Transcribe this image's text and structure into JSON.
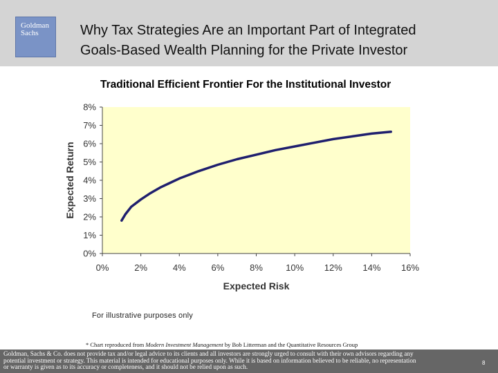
{
  "header": {
    "logo": {
      "line1": "Goldman",
      "line2": "Sachs"
    },
    "title_line1": "Why Tax Strategies Are an Important Part of Integrated",
    "title_line2": "Goals-Based Wealth Planning for the Private Investor"
  },
  "chart_data": {
    "type": "line",
    "title": "Traditional Efficient Frontier For the Institutional Investor",
    "xlabel": "Expected Risk",
    "ylabel": "Expected Return",
    "xlim": [
      0,
      16
    ],
    "ylim": [
      0,
      8
    ],
    "xticks": [
      "0%",
      "2%",
      "4%",
      "6%",
      "8%",
      "10%",
      "12%",
      "14%",
      "16%"
    ],
    "yticks": [
      "0%",
      "1%",
      "2%",
      "3%",
      "4%",
      "5%",
      "6%",
      "7%",
      "8%"
    ],
    "grid": false,
    "plot_background": "#ffffcc",
    "series": [
      {
        "color": "#1f1f6e",
        "x": [
          1.0,
          1.2,
          1.5,
          2.0,
          2.5,
          3.0,
          3.5,
          4.0,
          5.0,
          6.0,
          7.0,
          8.0,
          9.0,
          10.0,
          11.0,
          12.0,
          13.0,
          14.0,
          15.0
        ],
        "y": [
          1.8,
          2.15,
          2.55,
          2.95,
          3.3,
          3.6,
          3.85,
          4.1,
          4.5,
          4.85,
          5.15,
          5.4,
          5.65,
          5.85,
          6.05,
          6.25,
          6.4,
          6.55,
          6.65
        ]
      }
    ]
  },
  "note": "For illustrative purposes only",
  "source": {
    "prefix": "* Chart reproduced from ",
    "book": "Modern Investment Management",
    "suffix": " by Bob Litterman and the Quantitative Resources Group"
  },
  "footer": {
    "line1": "Goldman, Sachs & Co. does not provide tax and/or legal advice to its clients and all investors are strongly urged to consult with their own advisors regarding any",
    "line2": "potential investment or strategy. This material is intended for educational purposes only. While it is based on information believed to be reliable, no representation",
    "line3": "or warranty is given as to its accuracy or completeness, and it should not be relied upon as such.",
    "page_number": "8"
  }
}
